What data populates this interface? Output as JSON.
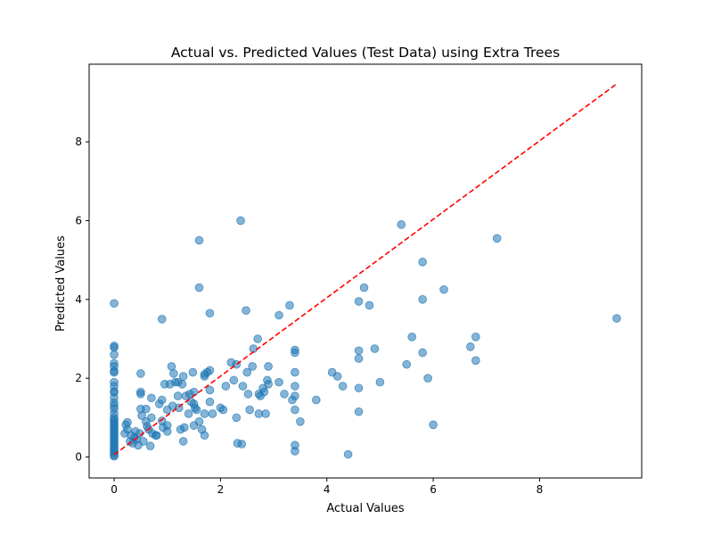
{
  "chart_data": {
    "type": "scatter",
    "title": "Actual vs. Predicted Values (Test Data) using Extra Trees",
    "xlabel": "Actual Values",
    "ylabel": "Predicted Values",
    "xlim": [
      -0.47,
      9.92
    ],
    "ylim": [
      -0.53,
      9.97
    ],
    "xticks": [
      0,
      2,
      4,
      6,
      8
    ],
    "yticks": [
      0,
      2,
      4,
      6,
      8
    ],
    "grid": false,
    "legend": "none",
    "colors": {
      "points": "#1f77b4",
      "reference_line": "#ff0000"
    },
    "reference_line": {
      "style": "dashed",
      "from": [
        0,
        0.06
      ],
      "to": [
        9.45,
        9.47
      ]
    },
    "points": [
      [
        0,
        3.9
      ],
      [
        0,
        2.82
      ],
      [
        0,
        2.78
      ],
      [
        0,
        2.6
      ],
      [
        0,
        2.38
      ],
      [
        0,
        2.3
      ],
      [
        0,
        2.18
      ],
      [
        0,
        2.15
      ],
      [
        0,
        1.9
      ],
      [
        0,
        1.8
      ],
      [
        0,
        1.67
      ],
      [
        0,
        1.64
      ],
      [
        0,
        1.5
      ],
      [
        0,
        1.38
      ],
      [
        0,
        1.3
      ],
      [
        0,
        1.22
      ],
      [
        0,
        1.1
      ],
      [
        0,
        1.0
      ],
      [
        0,
        0.95
      ],
      [
        0,
        0.9
      ],
      [
        0,
        0.85
      ],
      [
        0,
        0.8
      ],
      [
        0,
        0.75
      ],
      [
        0,
        0.7
      ],
      [
        0,
        0.65
      ],
      [
        0,
        0.6
      ],
      [
        0,
        0.55
      ],
      [
        0,
        0.5
      ],
      [
        0,
        0.45
      ],
      [
        0,
        0.4
      ],
      [
        0,
        0.35
      ],
      [
        0,
        0.3
      ],
      [
        0,
        0.25
      ],
      [
        0,
        0.2
      ],
      [
        0,
        0.15
      ],
      [
        0,
        0.1
      ],
      [
        0,
        0.05
      ],
      [
        0,
        0.02
      ],
      [
        0.2,
        0.6
      ],
      [
        0.22,
        0.82
      ],
      [
        0.25,
        0.88
      ],
      [
        0.25,
        0.7
      ],
      [
        0.3,
        0.4
      ],
      [
        0.32,
        0.55
      ],
      [
        0.35,
        0.35
      ],
      [
        0.38,
        0.5
      ],
      [
        0.4,
        0.65
      ],
      [
        0.42,
        0.45
      ],
      [
        0.45,
        0.3
      ],
      [
        0.48,
        0.6
      ],
      [
        0.5,
        2.12
      ],
      [
        0.5,
        1.65
      ],
      [
        0.5,
        1.6
      ],
      [
        0.5,
        1.22
      ],
      [
        0.52,
        1.05
      ],
      [
        0.55,
        0.4
      ],
      [
        0.6,
        1.22
      ],
      [
        0.6,
        0.9
      ],
      [
        0.62,
        0.78
      ],
      [
        0.65,
        0.7
      ],
      [
        0.68,
        0.28
      ],
      [
        0.7,
        1.5
      ],
      [
        0.7,
        1.0
      ],
      [
        0.72,
        0.6
      ],
      [
        0.78,
        0.55
      ],
      [
        0.8,
        0.55
      ],
      [
        0.85,
        1.35
      ],
      [
        0.9,
        3.5
      ],
      [
        0.9,
        1.45
      ],
      [
        0.9,
        0.92
      ],
      [
        0.92,
        0.75
      ],
      [
        0.95,
        1.85
      ],
      [
        1.0,
        1.2
      ],
      [
        1.0,
        0.8
      ],
      [
        1.0,
        0.65
      ],
      [
        1.05,
        1.85
      ],
      [
        1.08,
        2.3
      ],
      [
        1.1,
        1.3
      ],
      [
        1.12,
        2.12
      ],
      [
        1.15,
        1.9
      ],
      [
        1.2,
        1.9
      ],
      [
        1.2,
        1.55
      ],
      [
        1.22,
        1.25
      ],
      [
        1.25,
        0.7
      ],
      [
        1.28,
        1.85
      ],
      [
        1.3,
        2.05
      ],
      [
        1.3,
        0.4
      ],
      [
        1.32,
        0.75
      ],
      [
        1.35,
        1.55
      ],
      [
        1.4,
        1.1
      ],
      [
        1.42,
        1.6
      ],
      [
        1.45,
        1.4
      ],
      [
        1.48,
        2.15
      ],
      [
        1.5,
        1.65
      ],
      [
        1.5,
        1.35
      ],
      [
        1.5,
        0.8
      ],
      [
        1.52,
        1.25
      ],
      [
        1.55,
        1.2
      ],
      [
        1.6,
        5.5
      ],
      [
        1.6,
        4.3
      ],
      [
        1.6,
        0.9
      ],
      [
        1.65,
        0.7
      ],
      [
        1.7,
        2.1
      ],
      [
        1.7,
        2.05
      ],
      [
        1.7,
        1.1
      ],
      [
        1.7,
        0.55
      ],
      [
        1.75,
        2.15
      ],
      [
        1.8,
        3.65
      ],
      [
        1.8,
        2.2
      ],
      [
        1.8,
        1.7
      ],
      [
        1.8,
        1.4
      ],
      [
        1.85,
        1.1
      ],
      [
        2.0,
        1.25
      ],
      [
        2.05,
        1.2
      ],
      [
        2.1,
        1.8
      ],
      [
        2.2,
        2.4
      ],
      [
        2.25,
        1.95
      ],
      [
        2.3,
        2.35
      ],
      [
        2.3,
        1.0
      ],
      [
        2.32,
        0.35
      ],
      [
        2.38,
        6.0
      ],
      [
        2.4,
        0.33
      ],
      [
        2.42,
        1.8
      ],
      [
        2.48,
        3.72
      ],
      [
        2.5,
        2.15
      ],
      [
        2.52,
        1.6
      ],
      [
        2.55,
        1.2
      ],
      [
        2.6,
        2.3
      ],
      [
        2.62,
        2.75
      ],
      [
        2.7,
        3.0
      ],
      [
        2.72,
        1.6
      ],
      [
        2.72,
        1.1
      ],
      [
        2.75,
        1.55
      ],
      [
        2.8,
        1.75
      ],
      [
        2.82,
        1.65
      ],
      [
        2.85,
        1.1
      ],
      [
        2.88,
        1.95
      ],
      [
        2.9,
        2.3
      ],
      [
        2.9,
        1.85
      ],
      [
        3.1,
        3.6
      ],
      [
        3.1,
        1.9
      ],
      [
        3.2,
        1.6
      ],
      [
        3.3,
        3.85
      ],
      [
        3.35,
        1.45
      ],
      [
        3.4,
        2.72
      ],
      [
        3.4,
        2.65
      ],
      [
        3.4,
        2.15
      ],
      [
        3.4,
        1.8
      ],
      [
        3.4,
        1.55
      ],
      [
        3.4,
        1.2
      ],
      [
        3.4,
        0.3
      ],
      [
        3.4,
        0.15
      ],
      [
        3.5,
        0.9
      ],
      [
        3.8,
        1.45
      ],
      [
        4.1,
        2.15
      ],
      [
        4.2,
        2.05
      ],
      [
        4.3,
        1.8
      ],
      [
        4.4,
        0.07
      ],
      [
        4.6,
        3.95
      ],
      [
        4.6,
        2.7
      ],
      [
        4.6,
        2.5
      ],
      [
        4.6,
        1.75
      ],
      [
        4.6,
        1.15
      ],
      [
        4.7,
        4.3
      ],
      [
        4.8,
        3.85
      ],
      [
        4.9,
        2.75
      ],
      [
        5.0,
        1.9
      ],
      [
        5.4,
        5.9
      ],
      [
        5.5,
        2.35
      ],
      [
        5.6,
        3.05
      ],
      [
        5.8,
        4.95
      ],
      [
        5.8,
        4.0
      ],
      [
        5.8,
        2.65
      ],
      [
        5.9,
        2.0
      ],
      [
        6.0,
        0.82
      ],
      [
        6.2,
        4.25
      ],
      [
        6.7,
        2.8
      ],
      [
        6.8,
        3.05
      ],
      [
        6.8,
        2.45
      ],
      [
        7.2,
        5.55
      ],
      [
        9.45,
        3.52
      ]
    ]
  }
}
